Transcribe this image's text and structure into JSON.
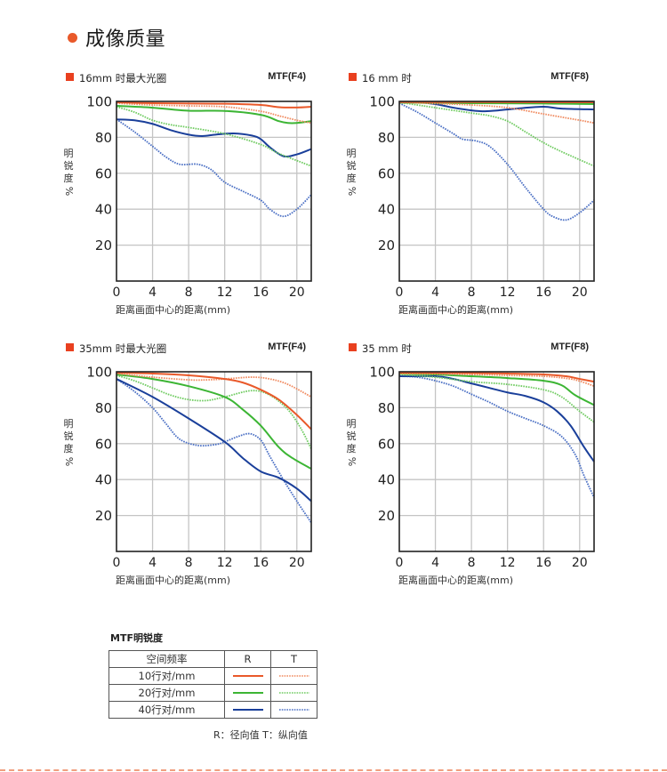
{
  "section": {
    "title": "成像质量",
    "accent_color": "#e9592a"
  },
  "colors": {
    "r10": "#e9592a",
    "t10": "#f08a5f",
    "r20": "#3cb534",
    "t20": "#6fcb60",
    "r40": "#1a3f9a",
    "t40": "#4a6fc4",
    "square": "#e9401f"
  },
  "chart_data": [
    {
      "type": "line",
      "title": "16mm 时最大光圈",
      "subtitle": "MTF(F4)",
      "xlabel": "距离画面中心的距离(mm)",
      "ylabel": "明锐度%",
      "xlim": [
        0,
        21.6
      ],
      "ylim": [
        0,
        100
      ],
      "xticks": [
        0,
        4,
        8,
        12,
        16,
        20
      ],
      "yticks": [
        20,
        40,
        60,
        80,
        100
      ],
      "grid": true,
      "series": [
        {
          "name": "10行对/mm R",
          "key": "r10",
          "style": "solid",
          "x": [
            0,
            4,
            8,
            12,
            16,
            18,
            20,
            21.6
          ],
          "y": [
            99.5,
            99,
            98.8,
            98.7,
            98,
            96.8,
            96.6,
            97
          ]
        },
        {
          "name": "10行对/mm T",
          "key": "t10",
          "style": "dotted",
          "x": [
            0,
            4,
            8,
            12,
            16,
            18,
            20,
            21.6
          ],
          "y": [
            99,
            98,
            97.5,
            97,
            94.5,
            92,
            89.5,
            88
          ]
        },
        {
          "name": "20行对/mm R",
          "key": "r20",
          "style": "solid",
          "x": [
            0,
            4,
            8,
            12,
            16,
            18,
            19,
            20,
            21.6
          ],
          "y": [
            97.5,
            96.5,
            94.8,
            94.7,
            92.5,
            89,
            88,
            88,
            89
          ]
        },
        {
          "name": "20行对/mm T",
          "key": "t20",
          "style": "dotted",
          "x": [
            0,
            2,
            4,
            6,
            8,
            12,
            16,
            18,
            21.6
          ],
          "y": [
            97,
            94,
            89.5,
            87,
            85.5,
            82,
            76,
            71,
            64
          ]
        },
        {
          "name": "40行对/mm R",
          "key": "r40",
          "style": "solid",
          "x": [
            0,
            2,
            4,
            6,
            8,
            9.5,
            11,
            13,
            15,
            16,
            17,
            18.5,
            20,
            21.6
          ],
          "y": [
            90,
            89.5,
            87.5,
            84,
            81.5,
            80.7,
            81.5,
            82.2,
            81,
            79,
            74.5,
            69.5,
            70.5,
            73.5
          ]
        },
        {
          "name": "40行对/mm T",
          "key": "t40",
          "style": "dotted",
          "x": [
            0,
            2,
            4,
            5.5,
            7,
            9,
            10.5,
            12,
            14,
            16,
            17,
            18.5,
            20,
            21.6
          ],
          "y": [
            90,
            83,
            75,
            69,
            65,
            65,
            62,
            55,
            50,
            45,
            40,
            36,
            40,
            48
          ]
        }
      ]
    },
    {
      "type": "line",
      "title": "16 mm 时",
      "subtitle": "MTF(F8)",
      "xlabel": "距离画面中心的距离(mm)",
      "ylabel": "明锐度%",
      "xlim": [
        0,
        21.6
      ],
      "ylim": [
        0,
        100
      ],
      "xticks": [
        0,
        4,
        8,
        12,
        16,
        20
      ],
      "yticks": [
        20,
        40,
        60,
        80,
        100
      ],
      "grid": true,
      "series": [
        {
          "name": "10行对/mm R",
          "key": "r10",
          "style": "solid",
          "x": [
            0,
            8,
            16,
            21.6
          ],
          "y": [
            99.7,
            99.6,
            99.5,
            99.5
          ]
        },
        {
          "name": "10行对/mm T",
          "key": "t10",
          "style": "dotted",
          "x": [
            0,
            4,
            8,
            12,
            16,
            20,
            21.6
          ],
          "y": [
            99.5,
            98.8,
            98,
            96.5,
            93,
            89.5,
            88
          ]
        },
        {
          "name": "20行对/mm R",
          "key": "r20",
          "style": "solid",
          "x": [
            0,
            8,
            16,
            21.6
          ],
          "y": [
            99.3,
            99,
            98.8,
            98.5
          ]
        },
        {
          "name": "20行对/mm T",
          "key": "t20",
          "style": "dotted",
          "x": [
            0,
            2,
            4,
            8,
            10,
            12,
            14,
            16,
            18,
            21.6
          ],
          "y": [
            99.5,
            98,
            96.5,
            93.5,
            92,
            89,
            83,
            77,
            72,
            64
          ]
        },
        {
          "name": "40行对/mm R",
          "key": "r40",
          "style": "solid",
          "x": [
            0,
            2,
            4,
            6,
            8,
            9.5,
            11,
            13,
            16,
            18,
            21.6
          ],
          "y": [
            99.5,
            99.5,
            98.5,
            96.5,
            95,
            94.5,
            95,
            96,
            97,
            96,
            95.5
          ]
        },
        {
          "name": "40行对/mm T",
          "key": "t40",
          "style": "dotted",
          "x": [
            0,
            2,
            4,
            6,
            7,
            8.5,
            10,
            12,
            14,
            16,
            17,
            18.5,
            20,
            21.6
          ],
          "y": [
            99,
            94,
            88,
            82,
            79,
            78,
            75,
            65,
            52,
            40,
            36,
            34,
            38,
            45
          ]
        }
      ]
    },
    {
      "type": "line",
      "title": "35mm 时最大光圈",
      "subtitle": "MTF(F4)",
      "xlabel": "距离画面中心的距离(mm)",
      "ylabel": "明锐度%",
      "xlim": [
        0,
        21.6
      ],
      "ylim": [
        0,
        100
      ],
      "xticks": [
        0,
        4,
        8,
        12,
        16,
        20
      ],
      "yticks": [
        20,
        40,
        60,
        80,
        100
      ],
      "grid": true,
      "series": [
        {
          "name": "10行对/mm R",
          "key": "r10",
          "style": "solid",
          "x": [
            0,
            4,
            8,
            12,
            14,
            16,
            18,
            20,
            21.6
          ],
          "y": [
            99.5,
            99,
            98,
            96,
            94,
            90,
            84.5,
            76,
            68
          ]
        },
        {
          "name": "10行对/mm T",
          "key": "t10",
          "style": "dotted",
          "x": [
            0,
            4,
            8,
            10,
            12,
            15,
            17,
            19,
            21.6
          ],
          "y": [
            99,
            97,
            95.5,
            95.5,
            96,
            97,
            96,
            93,
            86
          ]
        },
        {
          "name": "20行对/mm R",
          "key": "r20",
          "style": "solid",
          "x": [
            0,
            4,
            8,
            12,
            14,
            16,
            18,
            19.5,
            21.6
          ],
          "y": [
            98.5,
            96,
            92,
            86,
            79,
            70,
            58,
            52,
            46
          ]
        },
        {
          "name": "20行对/mm T",
          "key": "t20",
          "style": "dotted",
          "x": [
            0,
            2,
            4,
            6,
            8,
            10,
            12,
            15,
            17,
            19,
            20.5,
            21.6
          ],
          "y": [
            98,
            95,
            91,
            87,
            84.5,
            84,
            86,
            89.5,
            87,
            79,
            68,
            57
          ]
        },
        {
          "name": "40行对/mm R",
          "key": "r40",
          "style": "solid",
          "x": [
            0,
            4,
            8,
            12,
            14,
            16,
            18,
            20,
            21.6
          ],
          "y": [
            96,
            86,
            74,
            61,
            52,
            44.5,
            41,
            35,
            28
          ]
        },
        {
          "name": "40行对/mm T",
          "key": "t40",
          "style": "dotted",
          "x": [
            0,
            2,
            4,
            5.5,
            7,
            9,
            11,
            12,
            13.5,
            14.8,
            16,
            17,
            18.5,
            20,
            21.6
          ],
          "y": [
            96,
            89,
            80,
            71,
            62.5,
            59,
            59.5,
            61,
            64,
            65.5,
            62,
            53,
            40,
            28,
            16
          ]
        }
      ]
    },
    {
      "type": "line",
      "title": "35 mm 时",
      "subtitle": "MTF(F8)",
      "xlabel": "距离画面中心的距离(mm)",
      "ylabel": "明锐度%",
      "xlim": [
        0,
        21.6
      ],
      "ylim": [
        0,
        100
      ],
      "xticks": [
        0,
        4,
        8,
        12,
        16,
        20
      ],
      "yticks": [
        20,
        40,
        60,
        80,
        100
      ],
      "grid": true,
      "series": [
        {
          "name": "10行对/mm R",
          "key": "r10",
          "style": "solid",
          "x": [
            0,
            8,
            12,
            16,
            18.5,
            20,
            21.6
          ],
          "y": [
            99.5,
            99.3,
            99,
            98.5,
            97.5,
            96,
            94.5
          ]
        },
        {
          "name": "10行对/mm T",
          "key": "t10",
          "style": "dotted",
          "x": [
            0,
            8,
            12,
            16,
            19,
            20.5,
            21.6
          ],
          "y": [
            99,
            98.5,
            98,
            97.5,
            96,
            94,
            92
          ]
        },
        {
          "name": "20行对/mm R",
          "key": "r20",
          "style": "solid",
          "x": [
            0,
            4,
            8,
            12,
            16,
            18,
            19.5,
            21.6
          ],
          "y": [
            99,
            98.5,
            97.5,
            96.5,
            95,
            92.5,
            87,
            81.5
          ]
        },
        {
          "name": "20行对/mm T",
          "key": "t20",
          "style": "dotted",
          "x": [
            0,
            4,
            8,
            12,
            16,
            18,
            20,
            21.6
          ],
          "y": [
            98.5,
            97,
            94.5,
            93,
            90,
            86,
            78,
            72
          ]
        },
        {
          "name": "40行对/mm R",
          "key": "r40",
          "style": "solid",
          "x": [
            0,
            4,
            6,
            8,
            10,
            12,
            14,
            16,
            17.5,
            19,
            20.5,
            21.6
          ],
          "y": [
            97.5,
            97.5,
            96,
            93.5,
            91,
            88.5,
            86.5,
            83,
            78,
            70,
            58,
            50
          ]
        },
        {
          "name": "40行对/mm T",
          "key": "t40",
          "style": "dotted",
          "x": [
            0,
            2,
            4,
            6,
            8,
            10,
            12,
            14,
            16,
            18,
            19.5,
            20.5,
            21.6
          ],
          "y": [
            97.5,
            97,
            95,
            92,
            87.5,
            83,
            78,
            74,
            70,
            64,
            54,
            42,
            30
          ]
        }
      ]
    }
  ],
  "legend": {
    "title": "MTF明锐度",
    "headers": [
      "空间频率",
      "R",
      "T"
    ],
    "rows": [
      {
        "label": "10行对/mm",
        "r_key": "r10",
        "t_key": "t10"
      },
      {
        "label": "20行对/mm",
        "r_key": "r20",
        "t_key": "t20"
      },
      {
        "label": "40行对/mm",
        "r_key": "r40",
        "t_key": "t40"
      }
    ],
    "note": "R：径向值  T：纵向值"
  }
}
